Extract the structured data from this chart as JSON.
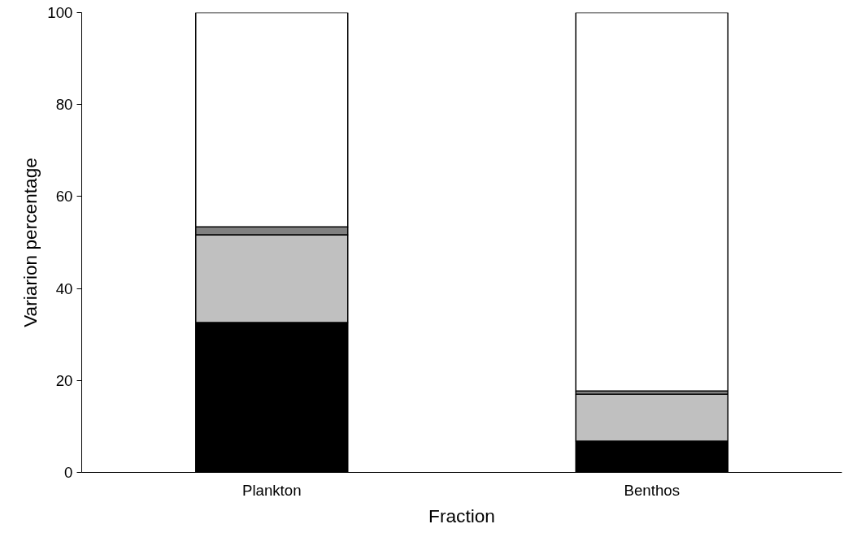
{
  "chart_data": {
    "type": "bar",
    "stacked": true,
    "xlabel": "Fraction",
    "ylabel": "Variarion percentage",
    "categories": [
      "Plankton",
      "Benthos"
    ],
    "series": [
      {
        "color": "#000000",
        "values": [
          32.6,
          6.8
        ]
      },
      {
        "color": "#c0c0c0",
        "values": [
          19.1,
          10.2
        ]
      },
      {
        "color": "#808080",
        "values": [
          1.7,
          0.7
        ]
      },
      {
        "color": "#ffffff",
        "values": [
          46.6,
          82.3
        ]
      }
    ],
    "ylim": [
      0,
      100
    ],
    "yticks": [
      0,
      20,
      40,
      60,
      80,
      100
    ],
    "grid": false
  }
}
